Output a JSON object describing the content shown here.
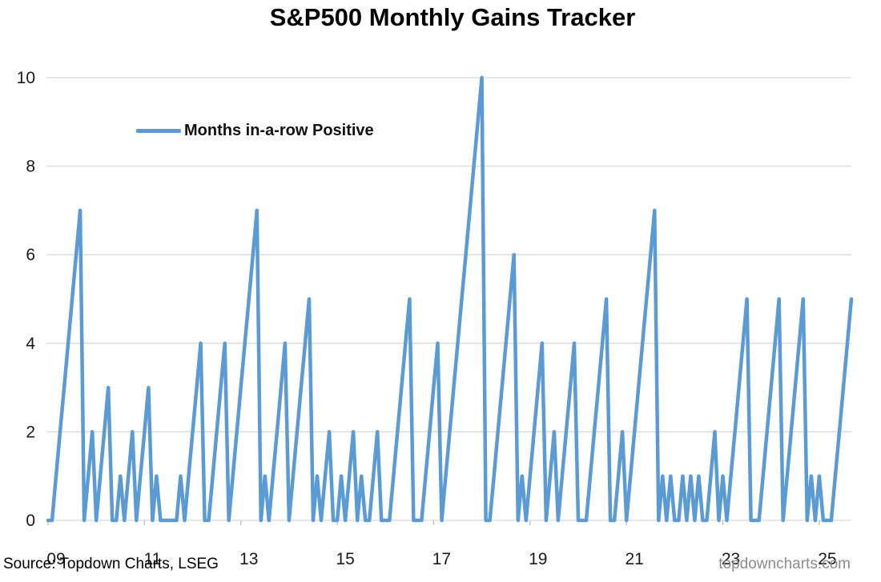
{
  "title": "S&P500 Monthly Gains Tracker",
  "legend": {
    "label": "Months in-a-row Positive"
  },
  "source_note": "Source: Topdown Charts, LSEG",
  "watermark": "topdowncharts.com",
  "colors": {
    "line": "#5B9BD5",
    "gridline": "#D9D9D9",
    "tick": "#BFBFBF",
    "axis_text": "#1a1a1a"
  },
  "chart_data": {
    "type": "line",
    "title": "S&P500 Monthly Gains Tracker",
    "ylabel": "",
    "xlabel": "",
    "ylim": [
      0,
      10
    ],
    "grid": "horizontal",
    "legend_position": "inside-top-left",
    "y_ticks": [
      0,
      2,
      4,
      6,
      8,
      10
    ],
    "x_ticks": {
      "labels": [
        "09",
        "11",
        "13",
        "15",
        "17",
        "19",
        "21",
        "23",
        "25"
      ],
      "month_indices": [
        0,
        24,
        48,
        72,
        96,
        120,
        144,
        168,
        192
      ]
    },
    "series": [
      {
        "name": "Months in-a-row Positive",
        "start_month": "2009-01",
        "end_month": "2025-09",
        "values": [
          0,
          0,
          1,
          2,
          3,
          4,
          5,
          6,
          7,
          0,
          1,
          2,
          0,
          1,
          2,
          3,
          0,
          0,
          1,
          0,
          1,
          2,
          0,
          1,
          2,
          3,
          0,
          1,
          0,
          0,
          0,
          0,
          0,
          1,
          0,
          1,
          2,
          3,
          4,
          0,
          0,
          1,
          2,
          3,
          4,
          0,
          1,
          2,
          3,
          4,
          5,
          6,
          7,
          0,
          1,
          0,
          1,
          2,
          3,
          4,
          0,
          1,
          2,
          3,
          4,
          5,
          0,
          1,
          0,
          1,
          2,
          0,
          0,
          1,
          0,
          1,
          2,
          0,
          1,
          0,
          0,
          1,
          2,
          0,
          0,
          0,
          1,
          2,
          3,
          4,
          5,
          0,
          0,
          0,
          1,
          2,
          3,
          4,
          0,
          1,
          2,
          3,
          4,
          5,
          6,
          7,
          8,
          9,
          10,
          0,
          0,
          1,
          2,
          3,
          4,
          5,
          6,
          0,
          1,
          0,
          1,
          2,
          3,
          4,
          0,
          1,
          2,
          0,
          1,
          2,
          3,
          4,
          0,
          0,
          0,
          1,
          2,
          3,
          4,
          5,
          0,
          0,
          1,
          2,
          0,
          1,
          2,
          3,
          4,
          5,
          6,
          7,
          0,
          1,
          0,
          1,
          0,
          0,
          1,
          0,
          1,
          0,
          1,
          0,
          0,
          1,
          2,
          0,
          1,
          0,
          1,
          2,
          3,
          4,
          5,
          0,
          0,
          0,
          1,
          2,
          3,
          4,
          5,
          0,
          1,
          2,
          3,
          4,
          5,
          0,
          1,
          0,
          1,
          0,
          0,
          0,
          1,
          2,
          3,
          4,
          5
        ]
      }
    ]
  }
}
